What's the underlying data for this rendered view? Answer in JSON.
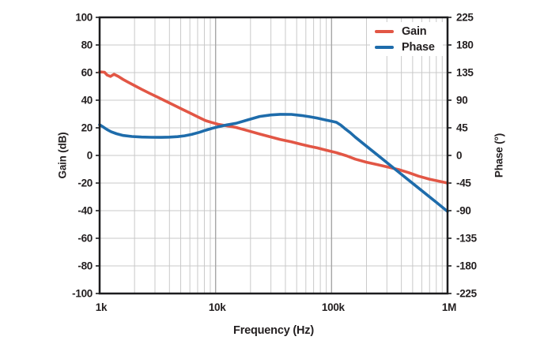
{
  "colors": {
    "gain": "#e25645",
    "phase": "#1e6cab",
    "grid_minor": "#c9c9c9",
    "grid_major": "#a6a6a6",
    "frame": "#1c1c1e",
    "text": "#231f20",
    "background": "#ffffff"
  },
  "axes": {
    "x": {
      "label": "Frequency (Hz)"
    },
    "y_left": {
      "label": "Gain (dB)"
    },
    "y_right": {
      "label": "Phase (°)"
    }
  },
  "legend": {
    "items": [
      {
        "label": "Gain",
        "color": "#e25645"
      },
      {
        "label": "Phase",
        "color": "#1e6cab"
      }
    ]
  },
  "chart_data": {
    "type": "line",
    "title": "",
    "xlabel": "Frequency (Hz)",
    "ylabel_left": "Gain (dB)",
    "ylabel_right": "Phase (°)",
    "x_scale": "log",
    "x_range": [
      1000,
      1000000
    ],
    "y_left_range": [
      -100,
      100
    ],
    "y_right_range": [
      -225,
      225
    ],
    "grid": true,
    "legend_position": "top-right-inside",
    "x_ticks": [
      {
        "f": 1000,
        "label": "1k"
      },
      {
        "f": 10000,
        "label": "10k"
      },
      {
        "f": 100000,
        "label": "100k"
      },
      {
        "f": 1000000,
        "label": "1M"
      }
    ],
    "y_left_ticks": [
      {
        "v": 100,
        "label": "100"
      },
      {
        "v": 80,
        "label": "80"
      },
      {
        "v": 60,
        "label": "60"
      },
      {
        "v": 40,
        "label": "40"
      },
      {
        "v": 20,
        "label": "20"
      },
      {
        "v": 0,
        "label": "0"
      },
      {
        "v": -20,
        "label": "-20"
      },
      {
        "v": -40,
        "label": "-40"
      },
      {
        "v": -60,
        "label": "-60"
      },
      {
        "v": -80,
        "label": "-80"
      },
      {
        "v": -100,
        "label": "-100"
      }
    ],
    "y_right_ticks": [
      {
        "v": 225,
        "label": "225"
      },
      {
        "v": 180,
        "label": "180"
      },
      {
        "v": 135,
        "label": "135"
      },
      {
        "v": 90,
        "label": "90"
      },
      {
        "v": 45,
        "label": "45"
      },
      {
        "v": 0,
        "label": "0"
      },
      {
        "v": -45,
        "label": "-45"
      },
      {
        "v": -90,
        "label": "-90"
      },
      {
        "v": -135,
        "label": "-135"
      },
      {
        "v": -180,
        "label": "-180"
      },
      {
        "v": -225,
        "label": "-225"
      }
    ],
    "series": [
      {
        "name": "Gain",
        "axis": "left",
        "color": "#e25645",
        "unit": "dB",
        "points": [
          [
            1000,
            60.5
          ],
          [
            1100,
            60.3
          ],
          [
            1160,
            58.2
          ],
          [
            1240,
            57.2
          ],
          [
            1330,
            58.8
          ],
          [
            1450,
            57.2
          ],
          [
            1600,
            55.0
          ],
          [
            1750,
            53.2
          ],
          [
            2000,
            50.6
          ],
          [
            2300,
            47.9
          ],
          [
            2700,
            45.0
          ],
          [
            3200,
            42.0
          ],
          [
            3800,
            38.9
          ],
          [
            4400,
            36.3
          ],
          [
            5200,
            33.3
          ],
          [
            6000,
            30.8
          ],
          [
            7000,
            28.0
          ],
          [
            8200,
            25.2
          ],
          [
            9300,
            23.8
          ],
          [
            10500,
            22.6
          ],
          [
            12500,
            21.4
          ],
          [
            15000,
            20.3
          ],
          [
            19000,
            17.9
          ],
          [
            24000,
            15.5
          ],
          [
            30000,
            13.4
          ],
          [
            36000,
            11.6
          ],
          [
            45000,
            9.8
          ],
          [
            55000,
            8.0
          ],
          [
            65000,
            6.6
          ],
          [
            75000,
            5.5
          ],
          [
            90000,
            3.8
          ],
          [
            110000,
            2.0
          ],
          [
            135000,
            -0.3
          ],
          [
            160000,
            -2.7
          ],
          [
            200000,
            -4.9
          ],
          [
            250000,
            -6.7
          ],
          [
            320000,
            -8.8
          ],
          [
            380000,
            -10.3
          ],
          [
            460000,
            -12.4
          ],
          [
            560000,
            -15.0
          ],
          [
            700000,
            -17.2
          ],
          [
            850000,
            -18.7
          ],
          [
            1000000,
            -20.0
          ]
        ]
      },
      {
        "name": "Phase",
        "axis": "right",
        "color": "#1e6cab",
        "unit": "deg",
        "points": [
          [
            1000,
            50.0
          ],
          [
            1080,
            46.0
          ],
          [
            1160,
            42.0
          ],
          [
            1260,
            38.5
          ],
          [
            1400,
            35.3
          ],
          [
            1600,
            32.5
          ],
          [
            1900,
            30.8
          ],
          [
            2300,
            30.0
          ],
          [
            2800,
            29.6
          ],
          [
            3400,
            29.5
          ],
          [
            4000,
            29.8
          ],
          [
            4700,
            30.6
          ],
          [
            5400,
            32.0
          ],
          [
            6200,
            34.2
          ],
          [
            7200,
            37.5
          ],
          [
            8200,
            41.0
          ],
          [
            9400,
            44.3
          ],
          [
            10500,
            46.5
          ],
          [
            12500,
            49.8
          ],
          [
            15000,
            52.3
          ],
          [
            19000,
            58.0
          ],
          [
            24000,
            63.5
          ],
          [
            30000,
            66.0
          ],
          [
            36000,
            67.0
          ],
          [
            45000,
            66.8
          ],
          [
            55000,
            65.0
          ],
          [
            65000,
            63.0
          ],
          [
            75000,
            61.0
          ],
          [
            90000,
            57.6
          ],
          [
            100000,
            55.8
          ],
          [
            110000,
            54.0
          ],
          [
            120000,
            49.5
          ],
          [
            130000,
            44.0
          ],
          [
            145000,
            37.0
          ],
          [
            160000,
            29.8
          ],
          [
            200000,
            15.1
          ],
          [
            250000,
            0.4
          ],
          [
            320000,
            -15.9
          ],
          [
            400000,
            -30.7
          ],
          [
            500000,
            -45.4
          ],
          [
            630000,
            -60.7
          ],
          [
            800000,
            -76.4
          ],
          [
            1000000,
            -91.3
          ]
        ]
      }
    ]
  }
}
